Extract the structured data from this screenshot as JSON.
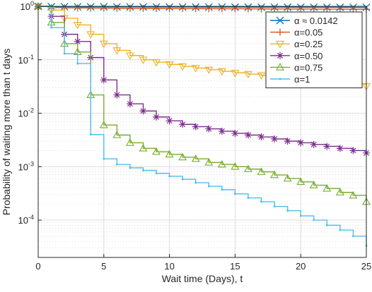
{
  "chart_data": {
    "type": "line",
    "title": "",
    "xlabel": "Wait time (Days), t",
    "ylabel": "Probability of waiting more than t days",
    "xlim": [
      0,
      25
    ],
    "ylim": [
      2e-05,
      1
    ],
    "yscale": "log",
    "grid": true,
    "legend_position": "top-right",
    "x_ticks": [
      0,
      5,
      10,
      15,
      20,
      25
    ],
    "x_tick_labels": [
      "0",
      "5",
      "10",
      "15",
      "20",
      "25"
    ],
    "y_ticks": [
      1,
      0.1,
      0.01,
      0.001,
      0.0001
    ],
    "y_tick_labels": [
      {
        "base": "10",
        "exp": "0"
      },
      {
        "base": "10",
        "exp": "-1"
      },
      {
        "base": "10",
        "exp": "-2"
      },
      {
        "base": "10",
        "exp": "-3"
      },
      {
        "base": "10",
        "exp": "-4"
      }
    ],
    "series": [
      {
        "name": "α ≈ 0.0142",
        "color": "#0072BD",
        "marker": "x",
        "x": [
          0,
          1,
          2,
          3,
          4,
          5,
          6,
          7,
          8,
          9,
          10,
          11,
          12,
          13,
          14,
          15,
          16,
          17,
          18,
          19,
          20,
          21,
          22,
          23,
          24,
          25
        ],
        "y": [
          1,
          0.985,
          0.982,
          0.98,
          0.978,
          0.977,
          0.976,
          0.975,
          0.974,
          0.973,
          0.972,
          0.971,
          0.97,
          0.969,
          0.968,
          0.967,
          0.966,
          0.965,
          0.964,
          0.963,
          0.962,
          0.961,
          0.96,
          0.959,
          0.958,
          0.957
        ]
      },
      {
        "name": "α=0.05",
        "color": "#D95319",
        "marker": "plus",
        "x": [
          0,
          1,
          2,
          3,
          4,
          5,
          6,
          7,
          8,
          9,
          10,
          11,
          12,
          13,
          14,
          15,
          16,
          17,
          18,
          19,
          20,
          21,
          22,
          23,
          24,
          25
        ],
        "y": [
          1,
          0.95,
          0.94,
          0.935,
          0.93,
          0.926,
          0.922,
          0.919,
          0.916,
          0.913,
          0.91,
          0.908,
          0.906,
          0.904,
          0.902,
          0.9,
          0.898,
          0.896,
          0.894,
          0.892,
          0.89,
          0.888,
          0.886,
          0.884,
          0.882,
          0.88
        ]
      },
      {
        "name": "α=0.25",
        "color": "#EDB120",
        "marker": "triangle-down",
        "x": [
          0,
          1,
          2,
          3,
          4,
          5,
          6,
          7,
          8,
          9,
          10,
          11,
          12,
          13,
          14,
          15,
          16,
          17,
          18,
          19,
          20,
          21,
          22,
          23,
          24,
          25
        ],
        "y": [
          1,
          0.85,
          0.6,
          0.45,
          0.3,
          0.2,
          0.15,
          0.12,
          0.1,
          0.09,
          0.082,
          0.075,
          0.07,
          0.065,
          0.061,
          0.057,
          0.054,
          0.051,
          0.048,
          0.046,
          0.043,
          0.041,
          0.039,
          0.037,
          0.035,
          0.032
        ]
      },
      {
        "name": "α=0.50",
        "color": "#7E2F8E",
        "marker": "star",
        "x": [
          0,
          1,
          2,
          3,
          4,
          5,
          6,
          7,
          8,
          9,
          10,
          11,
          12,
          13,
          14,
          15,
          16,
          17,
          18,
          19,
          20,
          21,
          22,
          23,
          24,
          25
        ],
        "y": [
          1,
          0.65,
          0.3,
          0.22,
          0.11,
          0.042,
          0.022,
          0.015,
          0.011,
          0.0085,
          0.0072,
          0.0062,
          0.0056,
          0.0051,
          0.0046,
          0.0042,
          0.0039,
          0.0036,
          0.0033,
          0.003,
          0.0028,
          0.0026,
          0.0024,
          0.0022,
          0.002,
          0.0018
        ]
      },
      {
        "name": "α=0.75",
        "color": "#77AC30",
        "marker": "triangle-up",
        "x": [
          0,
          1,
          2,
          3,
          4,
          5,
          6,
          7,
          8,
          9,
          10,
          11,
          12,
          13,
          14,
          15,
          16,
          17,
          18,
          19,
          20,
          21,
          22,
          23,
          24,
          25
        ],
        "y": [
          1,
          0.5,
          0.2,
          0.14,
          0.022,
          0.006,
          0.0039,
          0.0028,
          0.0022,
          0.0019,
          0.0017,
          0.0015,
          0.0014,
          0.0012,
          0.0011,
          0.001,
          0.0009,
          0.0008,
          0.0007,
          0.0006,
          0.00052,
          0.00045,
          0.00039,
          0.00033,
          0.00029,
          0.00022
        ]
      },
      {
        "name": "α=1",
        "color": "#4DBEEE",
        "marker": "point",
        "x": [
          0,
          1,
          2,
          3,
          4,
          5,
          6,
          7,
          8,
          9,
          10,
          11,
          12,
          13,
          14,
          15,
          16,
          17,
          18,
          19,
          20,
          21,
          22,
          23,
          24,
          25
        ],
        "y": [
          1,
          0.4,
          0.13,
          0.085,
          0.004,
          0.0014,
          0.0011,
          0.00095,
          0.00085,
          0.00075,
          0.00066,
          0.00058,
          0.0005,
          0.00043,
          0.00037,
          0.00031,
          0.00026,
          0.00022,
          0.00018,
          0.00015,
          0.00012,
          0.0001,
          8e-05,
          6.5e-05,
          5e-05,
          3.3e-05
        ]
      }
    ]
  }
}
